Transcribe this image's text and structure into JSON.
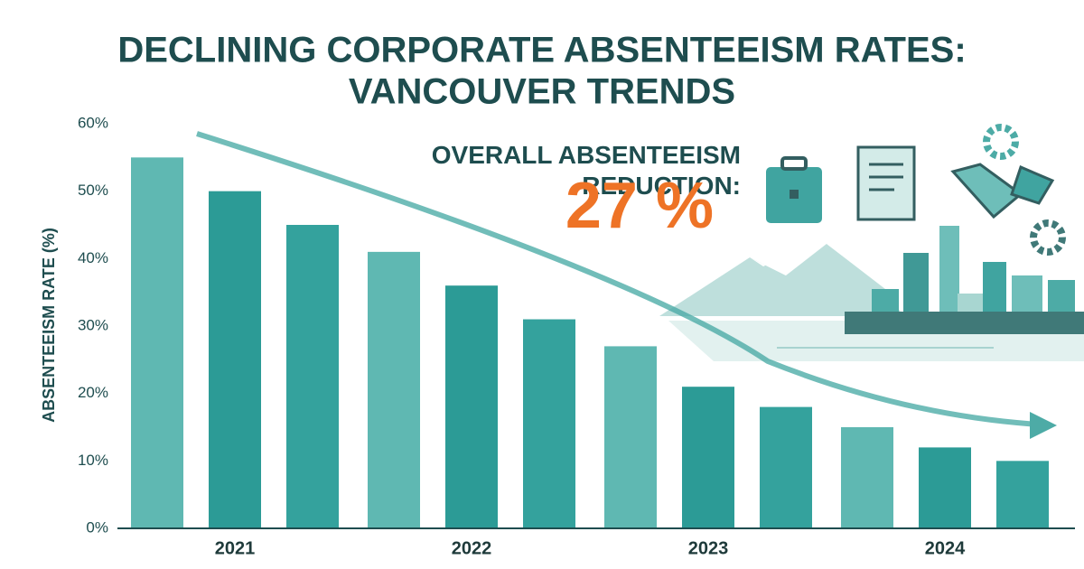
{
  "chart_data": {
    "type": "bar",
    "title": [
      "DECLINING CORPORATE ABSENTEEISM RATES:",
      "VANCOUVER TRENDS"
    ],
    "y_label": "ABSENTEEISM RATE (%)",
    "annotation": {
      "text": "OVERALL ABSENTEEISM REDUCTION:",
      "highlight": "27 %"
    },
    "categories": [
      "2021",
      "2022",
      "2023",
      "2024"
    ],
    "series": [
      {
        "color": "#5fb8b2",
        "values": [
          55,
          41,
          27,
          15
        ]
      },
      {
        "color": "#2c9b96",
        "values": [
          50,
          36,
          21,
          12
        ]
      },
      {
        "color": "#34a29d",
        "values": [
          45,
          31,
          18,
          10
        ]
      }
    ],
    "ylim": [
      0,
      60
    ],
    "yticks": [
      {
        "value": 0,
        "label": "0%"
      },
      {
        "value": 10,
        "label": "10%"
      },
      {
        "value": 20,
        "label": "20%"
      },
      {
        "value": 30,
        "label": "30%"
      },
      {
        "value": 40,
        "label": "40%"
      },
      {
        "value": 50,
        "label": "50%"
      },
      {
        "value": 60,
        "label": "60%"
      }
    ],
    "grid": false
  }
}
